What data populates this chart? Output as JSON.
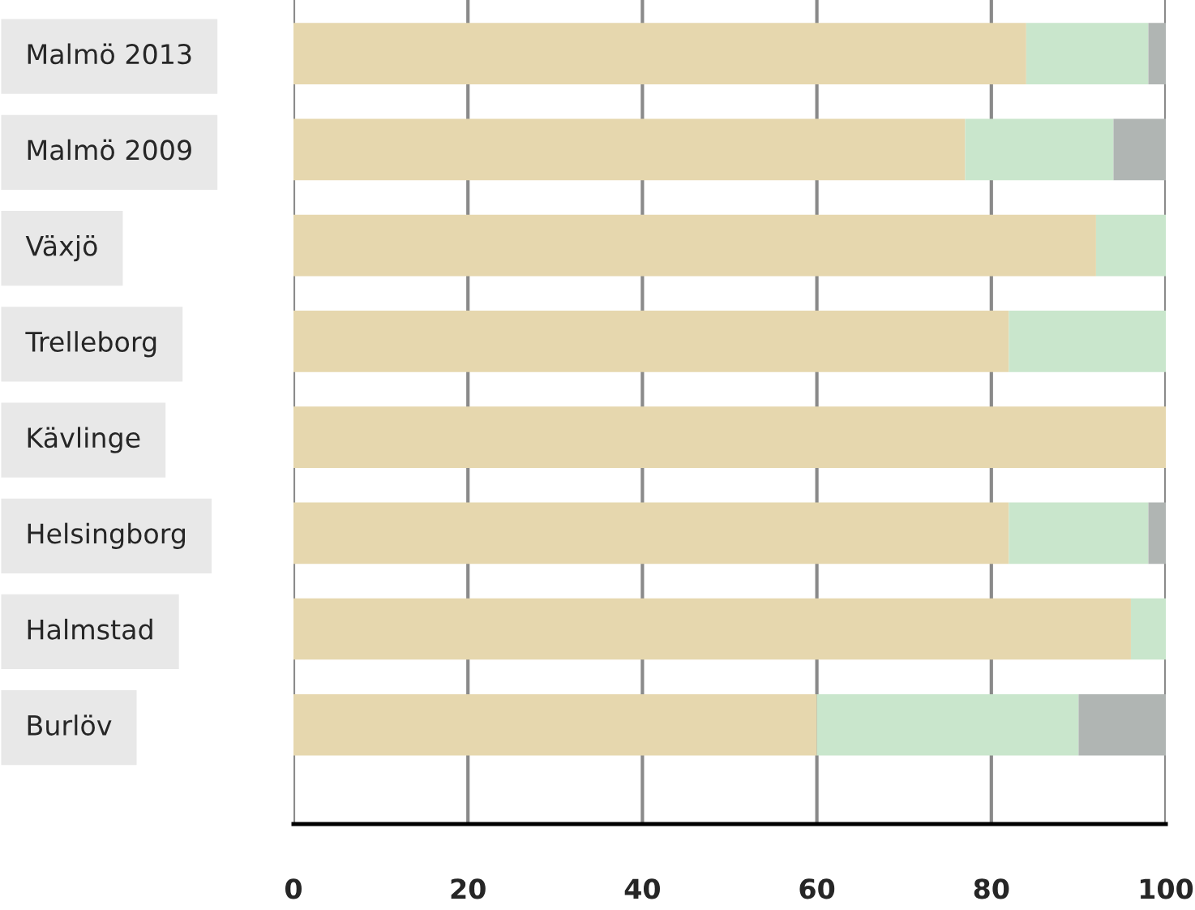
{
  "chart_data": {
    "type": "bar",
    "orientation": "horizontal",
    "stacked": true,
    "categories": [
      "Malmö 2013",
      "Malmö 2009",
      "Växjö",
      "Trelleborg",
      "Kävlinge",
      "Helsingborg",
      "Halmstad",
      "Burlöv"
    ],
    "series": [
      {
        "color": "#e6d7ae",
        "values": [
          84,
          77,
          92,
          82,
          100,
          82,
          96,
          60
        ]
      },
      {
        "color": "#c9e6cc",
        "values": [
          14,
          17,
          8,
          18,
          0,
          16,
          4,
          30
        ]
      },
      {
        "color": "#b0b5b3",
        "values": [
          2,
          6,
          0,
          0,
          0,
          2,
          0,
          10
        ]
      }
    ],
    "xlim": [
      0,
      100
    ],
    "xticks": [
      0,
      20,
      40,
      60,
      80,
      100
    ],
    "grid": "x",
    "legend": false
  }
}
